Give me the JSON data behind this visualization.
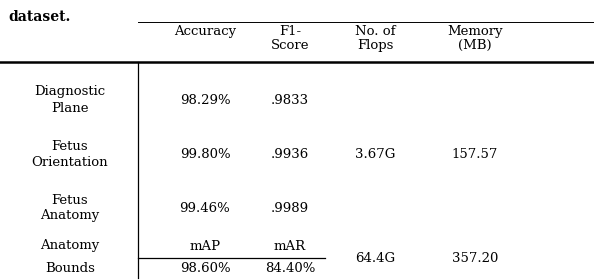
{
  "col_headers_line1": [
    "Accuracy",
    "F1-",
    "No. of",
    "Memory"
  ],
  "col_headers_line2": [
    "",
    "Score",
    "Flops",
    "(MB)"
  ],
  "rows": [
    {
      "label1": "Diagnostic",
      "label2": "Plane",
      "accuracy": "98.29%",
      "f1": ".9833",
      "flops": "",
      "memory": ""
    },
    {
      "label1": "Fetus",
      "label2": "Orientation",
      "accuracy": "99.80%",
      "f1": ".9936",
      "flops": "3.67G",
      "memory": "157.57"
    },
    {
      "label1": "Fetus",
      "label2": "Anatomy",
      "accuracy": "99.46%",
      "f1": ".9989",
      "flops": "",
      "memory": ""
    },
    {
      "label1": "Anatomy",
      "label2": "Bounds",
      "sub1": "mAP",
      "sub2": "mAR",
      "accuracy": "98.60%",
      "f1": "84.40%",
      "flops": "64.4G",
      "memory": "357.20"
    }
  ],
  "font_size": 9.5,
  "font_family": "serif",
  "background_color": "#ffffff",
  "title": "dataset.",
  "title_fontsize": 10
}
